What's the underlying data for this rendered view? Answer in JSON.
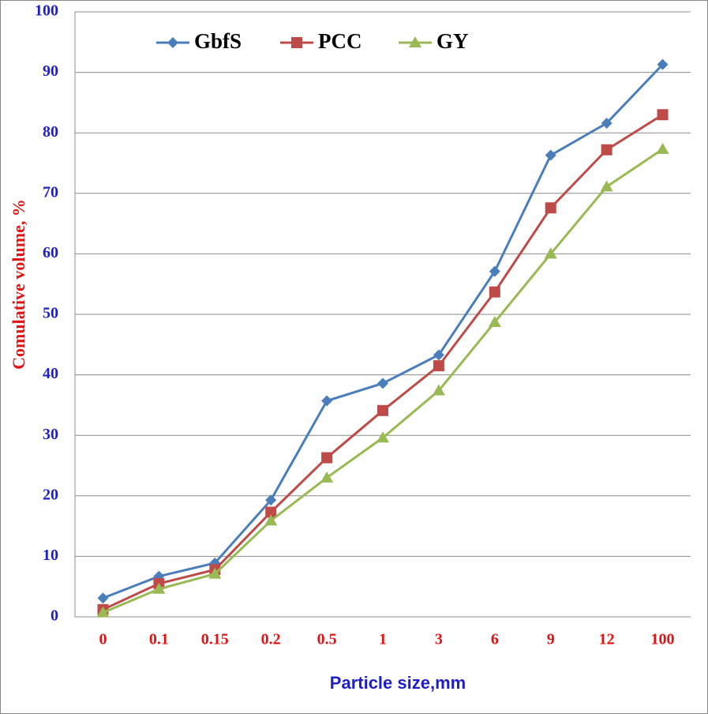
{
  "chart_data": {
    "type": "line",
    "x_label": "Particle size,mm",
    "y_label": "Comulative volume, %",
    "categories": [
      "0",
      "0.1",
      "0.15",
      "0.2",
      "0.5",
      "1",
      "3",
      "6",
      "9",
      "12",
      "100"
    ],
    "series": [
      {
        "name": "GbfS",
        "color": "#4a7ebb",
        "marker": "diamond",
        "values": [
          3.1,
          6.7,
          8.9,
          19.3,
          35.7,
          38.6,
          43.3,
          57.1,
          76.3,
          81.6,
          91.3
        ]
      },
      {
        "name": "PCC",
        "color": "#be4b48",
        "marker": "square",
        "values": [
          1.2,
          5.5,
          7.8,
          17.3,
          26.3,
          34.1,
          41.5,
          53.7,
          67.6,
          77.2,
          83.0
        ]
      },
      {
        "name": "GY",
        "color": "#98b954",
        "marker": "triangle",
        "values": [
          0.7,
          4.6,
          7.1,
          15.9,
          23.0,
          29.6,
          37.4,
          48.7,
          60.0,
          71.1,
          77.3
        ]
      }
    ],
    "ylim": [
      0,
      100
    ],
    "yticks": [
      0,
      10,
      20,
      30,
      40,
      50,
      60,
      70,
      80,
      90,
      100
    ],
    "grid": true,
    "legend": "top"
  }
}
